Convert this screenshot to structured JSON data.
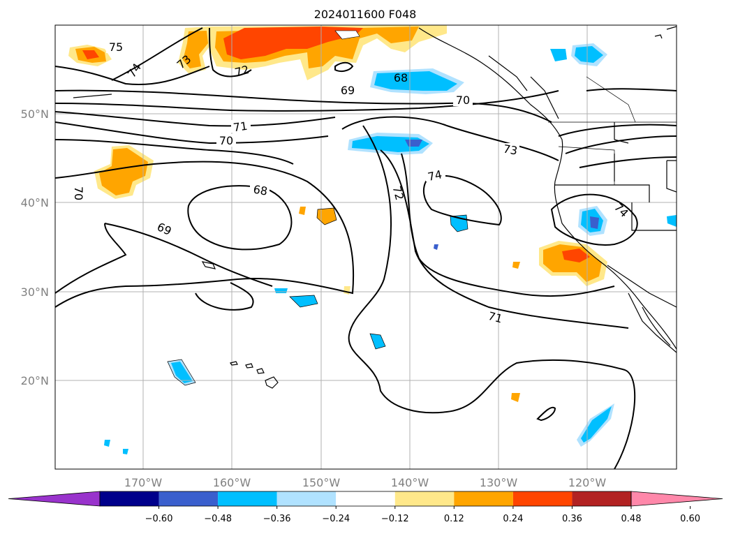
{
  "title": "2024011600 F048",
  "map": {
    "lat_labels": [
      "50°N",
      "40°N",
      "30°N",
      "20°N"
    ],
    "lon_labels": [
      "170°W",
      "160°W",
      "150°W",
      "140°W",
      "130°W",
      "120°W"
    ],
    "contour_labels": [
      "75",
      "74",
      "73",
      "72",
      "69",
      "68",
      "70",
      "71",
      "70",
      "68",
      "69",
      "70",
      "72",
      "74",
      "73",
      "71",
      "74"
    ],
    "line_color": "#000000",
    "grid_color": "#b0b0b0",
    "coastline_color": "#000000"
  },
  "colorbar": {
    "ticks": [
      "−0.60",
      "−0.48",
      "−0.36",
      "−0.24",
      "−0.12",
      "0.12",
      "0.24",
      "0.36",
      "0.48",
      "0.60"
    ],
    "colors": [
      "#9933cc",
      "#00008b",
      "#3a5fcd",
      "#00bfff",
      "#b0e2ff",
      "#ffffff",
      "#ffe88a",
      "#ffa500",
      "#ff4500",
      "#b22222",
      "#ff88aa"
    ],
    "extend": "both"
  }
}
